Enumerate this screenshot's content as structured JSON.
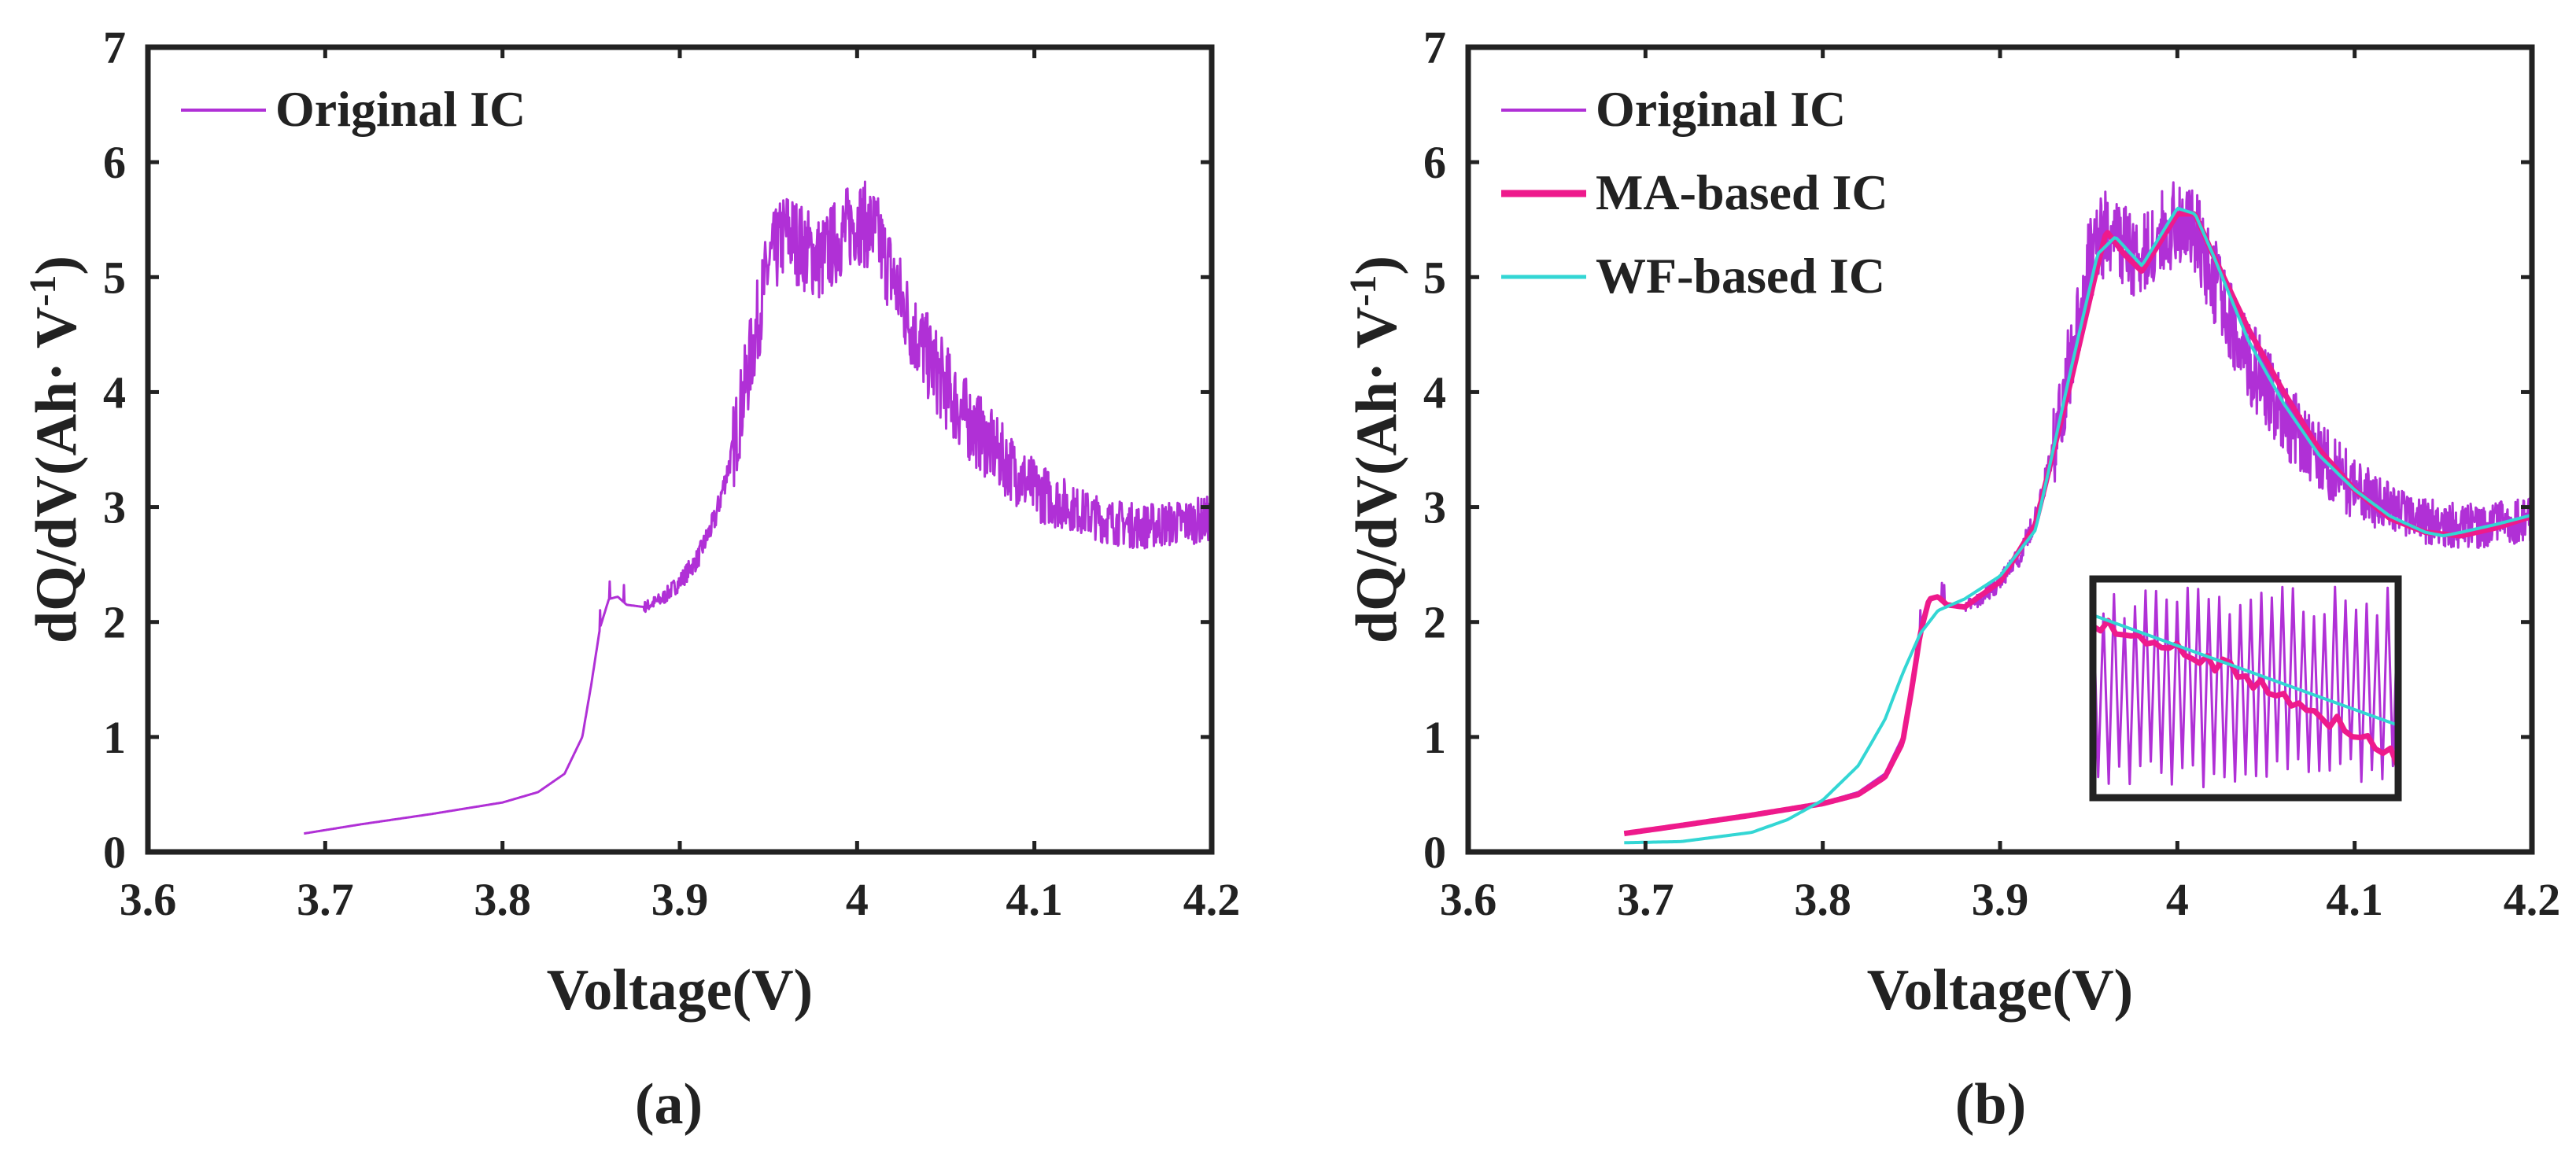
{
  "figure": {
    "panels": [
      "panel_a",
      "panel_b"
    ]
  },
  "chart_data": [
    {
      "id": "panel_a",
      "type": "line",
      "caption": "(a)",
      "xlabel": "Voltage(V)",
      "ylabel": "dQ/dV(Ah· V",
      "ylabel_sup": "-1",
      "ylabel_close": ")",
      "xlim": [
        3.6,
        4.2
      ],
      "ylim": [
        0,
        7
      ],
      "xticks": [
        3.6,
        3.7,
        3.8,
        3.9,
        4.0,
        4.1,
        4.2
      ],
      "xtick_labels": [
        "3.6",
        "3.7",
        "3.8",
        "3.9",
        "4",
        "4.1",
        "4.2"
      ],
      "yticks": [
        0,
        1,
        2,
        3,
        4,
        5,
        6,
        7
      ],
      "ytick_labels": [
        "0",
        "1",
        "2",
        "3",
        "4",
        "5",
        "6",
        "7"
      ],
      "legend_position": "top-left",
      "series": [
        {
          "name": "Original  IC",
          "color": "#b030d6",
          "noisy": true,
          "x": [
            3.688,
            3.72,
            3.76,
            3.8,
            3.82,
            3.835,
            3.845,
            3.85,
            3.855,
            3.86,
            3.865,
            3.87,
            3.88,
            3.89,
            3.9,
            3.91,
            3.92,
            3.93,
            3.94,
            3.95,
            3.96,
            3.97,
            3.98,
            3.99,
            4.0,
            4.01,
            4.02,
            4.03,
            4.04,
            4.05,
            4.06,
            4.08,
            4.1,
            4.12,
            4.14,
            4.16,
            4.18,
            4.2
          ],
          "y": [
            0.16,
            0.24,
            0.33,
            0.43,
            0.52,
            0.68,
            1.0,
            1.45,
            1.95,
            2.2,
            2.22,
            2.15,
            2.13,
            2.2,
            2.35,
            2.55,
            2.9,
            3.5,
            4.3,
            5.1,
            5.4,
            5.25,
            5.15,
            5.35,
            5.5,
            5.4,
            5.0,
            4.6,
            4.3,
            4.05,
            3.8,
            3.45,
            3.15,
            3.0,
            2.88,
            2.83,
            2.86,
            2.9
          ]
        }
      ]
    },
    {
      "id": "panel_b",
      "type": "line",
      "caption": "(b)",
      "xlabel": "Voltage(V)",
      "ylabel": "dQ/dV(Ah· V",
      "ylabel_sup": "-1",
      "ylabel_close": ")",
      "xlim": [
        3.6,
        4.2
      ],
      "ylim": [
        0,
        7
      ],
      "xticks": [
        3.6,
        3.7,
        3.8,
        3.9,
        4.0,
        4.1,
        4.2
      ],
      "xtick_labels": [
        "3.6",
        "3.7",
        "3.8",
        "3.9",
        "4",
        "4.1",
        "4.2"
      ],
      "yticks": [
        0,
        1,
        2,
        3,
        4,
        5,
        6,
        7
      ],
      "ytick_labels": [
        "0",
        "1",
        "2",
        "3",
        "4",
        "5",
        "6",
        "7"
      ],
      "legend_position": "top-left",
      "inset": true,
      "series": [
        {
          "name": "Original IC",
          "color": "#b030d6",
          "noisy": true,
          "x": [
            3.688,
            3.72,
            3.76,
            3.8,
            3.82,
            3.835,
            3.845,
            3.85,
            3.855,
            3.86,
            3.865,
            3.87,
            3.88,
            3.89,
            3.9,
            3.91,
            3.92,
            3.93,
            3.94,
            3.95,
            3.96,
            3.97,
            3.98,
            3.99,
            4.0,
            4.01,
            4.02,
            4.03,
            4.04,
            4.05,
            4.06,
            4.08,
            4.1,
            4.12,
            4.14,
            4.16,
            4.18,
            4.2
          ],
          "y": [
            0.16,
            0.24,
            0.33,
            0.43,
            0.52,
            0.68,
            1.0,
            1.45,
            1.95,
            2.2,
            2.22,
            2.15,
            2.13,
            2.2,
            2.35,
            2.55,
            2.9,
            3.5,
            4.3,
            5.1,
            5.4,
            5.25,
            5.15,
            5.35,
            5.5,
            5.4,
            5.0,
            4.6,
            4.3,
            4.05,
            3.8,
            3.45,
            3.15,
            3.0,
            2.88,
            2.83,
            2.86,
            2.9
          ]
        },
        {
          "name": "MA-based IC",
          "color": "#ee1a8c",
          "x": [
            3.688,
            3.72,
            3.76,
            3.8,
            3.82,
            3.835,
            3.845,
            3.85,
            3.855,
            3.86,
            3.865,
            3.87,
            3.88,
            3.9,
            3.92,
            3.94,
            3.955,
            3.96,
            3.97,
            3.98,
            3.99,
            4.0,
            4.01,
            4.02,
            4.04,
            4.06,
            4.08,
            4.1,
            4.12,
            4.14,
            4.16,
            4.18,
            4.2
          ],
          "y": [
            0.16,
            0.23,
            0.32,
            0.42,
            0.5,
            0.65,
            0.95,
            1.4,
            1.9,
            2.2,
            2.22,
            2.15,
            2.13,
            2.35,
            2.85,
            4.1,
            5.1,
            5.4,
            5.2,
            5.05,
            5.3,
            5.55,
            5.55,
            5.2,
            4.55,
            4.0,
            3.5,
            3.15,
            2.9,
            2.78,
            2.75,
            2.82,
            2.92
          ]
        },
        {
          "name": "WF-based IC",
          "color": "#33d6d4",
          "x": [
            3.688,
            3.72,
            3.76,
            3.78,
            3.8,
            3.82,
            3.835,
            3.845,
            3.855,
            3.865,
            3.88,
            3.9,
            3.92,
            3.94,
            3.955,
            3.965,
            3.98,
            3.99,
            4.0,
            4.01,
            4.02,
            4.04,
            4.06,
            4.08,
            4.1,
            4.12,
            4.14,
            4.15,
            4.16,
            4.18,
            4.2
          ],
          "y": [
            0.08,
            0.09,
            0.17,
            0.28,
            0.45,
            0.75,
            1.15,
            1.55,
            1.9,
            2.1,
            2.2,
            2.4,
            2.8,
            4.2,
            5.2,
            5.35,
            5.1,
            5.35,
            5.6,
            5.55,
            5.2,
            4.45,
            3.9,
            3.45,
            3.15,
            2.92,
            2.78,
            2.75,
            2.78,
            2.85,
            2.93
          ]
        }
      ]
    }
  ]
}
